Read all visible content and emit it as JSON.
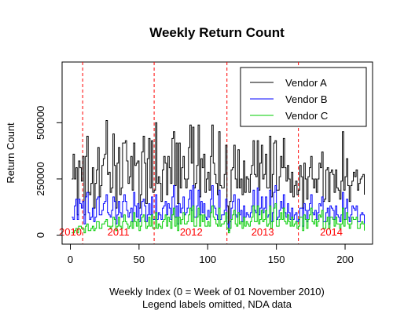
{
  "chart_data": {
    "type": "line",
    "step": true,
    "title": "Weekly Return Count",
    "xlabel": "Weekly Index (0 = Week of 01 November 2010)",
    "subtitle": "Legend labels omitted, NDA data",
    "ylabel": "Return Count",
    "xlim": [
      -6,
      220
    ],
    "ylim": [
      -40000,
      770000
    ],
    "xticks": [
      0,
      50,
      100,
      150,
      200
    ],
    "yticks": [
      0,
      250000,
      500000
    ],
    "ytick_labels": [
      "0",
      "250000",
      "500000"
    ],
    "year_lines": [
      9,
      61,
      114,
      166
    ],
    "year_labels": [
      {
        "x": 0,
        "label": "2010"
      },
      {
        "x": 35,
        "label": "2011"
      },
      {
        "x": 88,
        "label": "2012"
      },
      {
        "x": 140,
        "label": "2013"
      },
      {
        "x": 190,
        "label": "2014"
      }
    ],
    "legend_position": "top-right",
    "grid": false,
    "colors": {
      "a": "#000000",
      "b": "#0000ff",
      "c": "#00cc00",
      "year_line": "#ff0000"
    },
    "x_start": 1,
    "x_end": 214,
    "series": [
      {
        "name": "Vendor A",
        "color": "#000000",
        "values": [
          250000,
          360000,
          250000,
          300000,
          90000,
          330000,
          300000,
          240000,
          350000,
          90000,
          350000,
          440000,
          190000,
          180000,
          230000,
          300000,
          120000,
          230000,
          290000,
          390000,
          170000,
          220000,
          310000,
          340000,
          360000,
          510000,
          270000,
          280000,
          190000,
          210000,
          450000,
          310000,
          120000,
          320000,
          390000,
          180000,
          210000,
          410000,
          410000,
          420000,
          330000,
          230000,
          260000,
          350000,
          200000,
          410000,
          310000,
          320000,
          330000,
          120000,
          180000,
          370000,
          440000,
          320000,
          140000,
          340000,
          430000,
          210000,
          420000,
          190000,
          200000,
          500000,
          230000,
          260000,
          230000,
          150000,
          290000,
          350000,
          320000,
          180000,
          350000,
          300000,
          230000,
          430000,
          460000,
          220000,
          410000,
          140000,
          410000,
          210000,
          300000,
          350000,
          250000,
          210000,
          250000,
          390000,
          490000,
          320000,
          480000,
          210000,
          230000,
          310000,
          490000,
          170000,
          340000,
          300000,
          360000,
          190000,
          250000,
          280000,
          200000,
          350000,
          490000,
          320000,
          270000,
          230000,
          180000,
          460000,
          220000,
          210000,
          210000,
          270000,
          400000,
          130000,
          20000,
          150000,
          290000,
          300000,
          400000,
          250000,
          210000,
          380000,
          210000,
          250000,
          180000,
          330000,
          190000,
          260000,
          250000,
          190000,
          270000,
          310000,
          420000,
          270000,
          260000,
          420000,
          200000,
          320000,
          400000,
          250000,
          270000,
          360000,
          210000,
          210000,
          440000,
          170000,
          270000,
          410000,
          420000,
          200000,
          200000,
          260000,
          350000,
          300000,
          430000,
          300000,
          240000,
          310000,
          250000,
          190000,
          280000,
          170000,
          220000,
          240000,
          180000,
          200000,
          310000,
          260000,
          120000,
          320000,
          250000,
          160000,
          260000,
          300000,
          350000,
          250000,
          210000,
          250000,
          190000,
          250000,
          320000,
          300000,
          370000,
          150000,
          160000,
          290000,
          300000,
          150000,
          280000,
          290000,
          270000,
          190000,
          290000,
          210000,
          200000,
          160000,
          240000,
          460000,
          200000,
          260000,
          340000,
          220000,
          150000,
          220000,
          240000,
          280000,
          260000,
          290000,
          200000,
          230000,
          250000,
          260000,
          270000,
          180000
        ]
      },
      {
        "name": "Vendor B",
        "color": "#0000ff",
        "values": [
          80000,
          70000,
          130000,
          160000,
          70000,
          160000,
          140000,
          120000,
          150000,
          50000,
          170000,
          190000,
          100000,
          70000,
          80000,
          120000,
          60000,
          80000,
          160000,
          170000,
          90000,
          90000,
          110000,
          140000,
          150000,
          180000,
          100000,
          90000,
          80000,
          110000,
          170000,
          150000,
          50000,
          90000,
          150000,
          100000,
          80000,
          150000,
          180000,
          150000,
          110000,
          80000,
          100000,
          120000,
          60000,
          190000,
          130000,
          80000,
          140000,
          60000,
          90000,
          150000,
          160000,
          130000,
          60000,
          90000,
          140000,
          90000,
          170000,
          70000,
          70000,
          180000,
          70000,
          100000,
          90000,
          70000,
          120000,
          130000,
          150000,
          90000,
          140000,
          120000,
          70000,
          170000,
          220000,
          80000,
          130000,
          50000,
          140000,
          100000,
          120000,
          170000,
          90000,
          100000,
          120000,
          160000,
          200000,
          110000,
          220000,
          80000,
          80000,
          130000,
          200000,
          90000,
          150000,
          100000,
          140000,
          80000,
          70000,
          110000,
          80000,
          160000,
          220000,
          130000,
          120000,
          90000,
          70000,
          200000,
          70000,
          90000,
          90000,
          110000,
          160000,
          50000,
          20000,
          60000,
          120000,
          150000,
          180000,
          90000,
          80000,
          160000,
          90000,
          110000,
          60000,
          130000,
          80000,
          100000,
          90000,
          80000,
          100000,
          130000,
          200000,
          110000,
          100000,
          210000,
          90000,
          120000,
          170000,
          100000,
          120000,
          170000,
          80000,
          90000,
          200000,
          60000,
          100000,
          190000,
          220000,
          70000,
          80000,
          110000,
          150000,
          120000,
          180000,
          100000,
          80000,
          140000,
          100000,
          70000,
          120000,
          70000,
          90000,
          100000,
          60000,
          70000,
          120000,
          120000,
          40000,
          140000,
          110000,
          60000,
          110000,
          140000,
          180000,
          100000,
          90000,
          110000,
          70000,
          100000,
          140000,
          130000,
          170000,
          60000,
          60000,
          100000,
          120000,
          50000,
          130000,
          120000,
          110000,
          70000,
          130000,
          90000,
          80000,
          60000,
          90000,
          190000,
          70000,
          120000,
          160000,
          80000,
          60000,
          90000,
          130000,
          120000,
          110000,
          130000,
          60000,
          60000,
          90000,
          100000,
          90000,
          30000
        ]
      },
      {
        "name": "Vendor C",
        "color": "#00cc00",
        "values": [
          10000,
          10000,
          20000,
          30000,
          10000,
          40000,
          40000,
          30000,
          30000,
          10000,
          40000,
          50000,
          20000,
          20000,
          30000,
          40000,
          20000,
          30000,
          60000,
          60000,
          30000,
          30000,
          50000,
          50000,
          60000,
          70000,
          40000,
          40000,
          30000,
          40000,
          80000,
          70000,
          20000,
          40000,
          80000,
          40000,
          30000,
          60000,
          90000,
          60000,
          50000,
          30000,
          40000,
          60000,
          30000,
          100000,
          60000,
          40000,
          70000,
          20000,
          40000,
          80000,
          90000,
          60000,
          30000,
          40000,
          80000,
          40000,
          90000,
          30000,
          30000,
          100000,
          30000,
          50000,
          40000,
          30000,
          60000,
          70000,
          90000,
          40000,
          80000,
          60000,
          30000,
          90000,
          120000,
          40000,
          80000,
          20000,
          80000,
          50000,
          70000,
          100000,
          50000,
          50000,
          60000,
          90000,
          120000,
          60000,
          130000,
          40000,
          40000,
          80000,
          120000,
          40000,
          90000,
          60000,
          90000,
          40000,
          40000,
          60000,
          40000,
          100000,
          130000,
          80000,
          70000,
          50000,
          40000,
          120000,
          40000,
          50000,
          50000,
          60000,
          100000,
          30000,
          10000,
          30000,
          70000,
          90000,
          110000,
          50000,
          40000,
          100000,
          50000,
          60000,
          30000,
          80000,
          40000,
          60000,
          50000,
          40000,
          60000,
          80000,
          130000,
          60000,
          60000,
          130000,
          50000,
          70000,
          110000,
          60000,
          70000,
          110000,
          40000,
          50000,
          130000,
          30000,
          60000,
          120000,
          140000,
          40000,
          40000,
          70000,
          100000,
          70000,
          120000,
          60000,
          50000,
          90000,
          60000,
          40000,
          80000,
          40000,
          50000,
          60000,
          30000,
          40000,
          80000,
          80000,
          20000,
          90000,
          70000,
          30000,
          70000,
          90000,
          120000,
          60000,
          50000,
          70000,
          40000,
          60000,
          90000,
          80000,
          110000,
          30000,
          30000,
          60000,
          80000,
          30000,
          80000,
          80000,
          70000,
          40000,
          80000,
          50000,
          50000,
          30000,
          50000,
          120000,
          40000,
          70000,
          100000,
          50000,
          30000,
          50000,
          80000,
          70000,
          70000,
          80000,
          30000,
          30000,
          50000,
          60000,
          50000,
          20000
        ]
      }
    ]
  }
}
